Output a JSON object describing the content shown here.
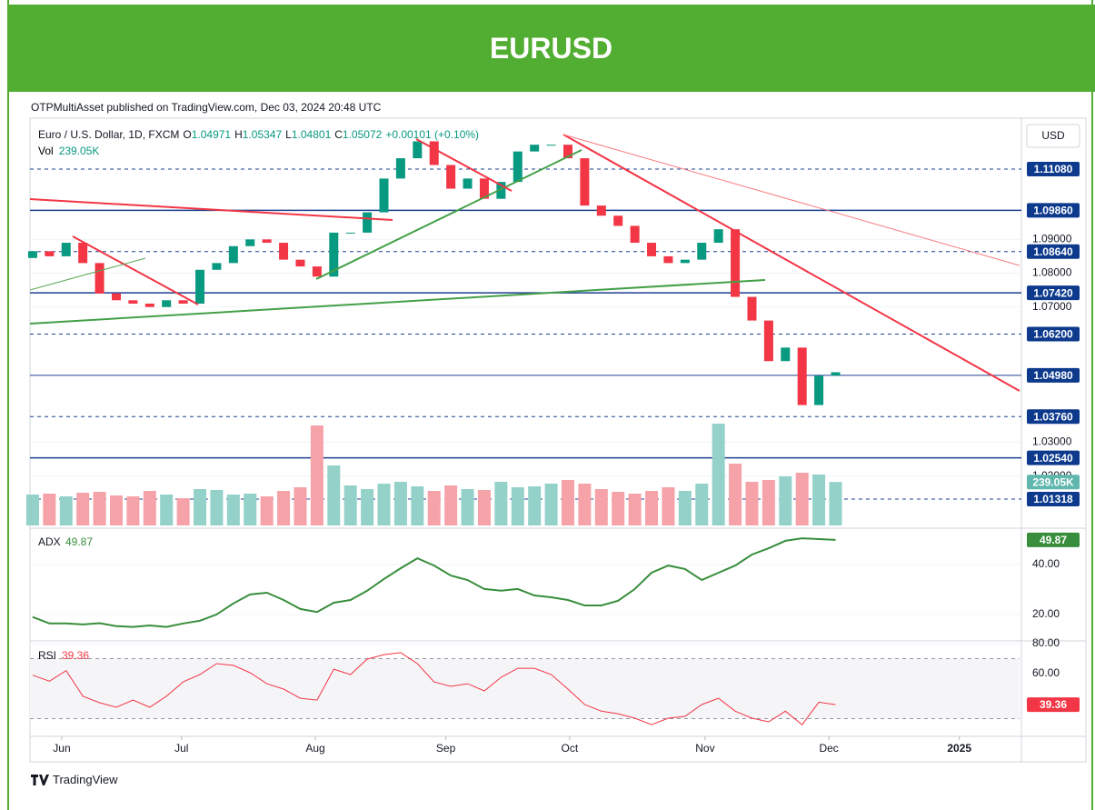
{
  "header": {
    "title": "EURUSD",
    "published": "OTPMultiAsset published on TradingView.com, Dec 03, 2024 20:48 UTC"
  },
  "legend": {
    "symbol": "Euro / U.S. Dollar, 1D, FXCM",
    "open_label": "O",
    "open": "1.04971",
    "high_label": "H",
    "high": "1.05347",
    "low_label": "L",
    "low": "1.04801",
    "close_label": "C",
    "close": "1.05072",
    "change": "+0.00101 (+0.10%)",
    "vol_label": "Vol",
    "vol": "239.05K"
  },
  "chart_data": {
    "type": "candlestick",
    "currency": "USD",
    "xlim": [
      -0.16,
      59.0
    ],
    "xticks": [
      {
        "value": 1.74,
        "label": "Jun"
      },
      {
        "value": 8.9,
        "label": "Jul"
      },
      {
        "value": 16.9,
        "label": "Aug"
      },
      {
        "value": 24.7,
        "label": "Sep"
      },
      {
        "value": 32.1,
        "label": "Oct"
      },
      {
        "value": 40.2,
        "label": "Nov"
      },
      {
        "value": 47.6,
        "label": "Dec"
      },
      {
        "value": 55.4,
        "label": "2025"
      }
    ],
    "ylim": [
      1.0054,
      1.1245
    ],
    "yticks": [
      {
        "value": 1.09,
        "label": "1.09000"
      },
      {
        "value": 1.08,
        "label": "1.08000"
      },
      {
        "value": 1.07,
        "label": "1.07000"
      },
      {
        "value": 1.03,
        "label": "1.03000"
      },
      {
        "value": 1.02,
        "label": "1.02000"
      }
    ],
    "levels": [
      {
        "value": 1.1108,
        "label": "1.11080",
        "style": "dashed"
      },
      {
        "value": 1.0986,
        "label": "1.09860",
        "style": "solid"
      },
      {
        "value": 1.0864,
        "label": "1.08640",
        "style": "dashed"
      },
      {
        "value": 1.0742,
        "label": "1.07420",
        "style": "solid"
      },
      {
        "value": 1.062,
        "label": "1.06200",
        "style": "dashed"
      },
      {
        "value": 1.0498,
        "label": "1.04980",
        "style": "thin"
      },
      {
        "value": 1.0376,
        "label": "1.03760",
        "style": "dashed"
      },
      {
        "value": 1.0254,
        "label": "1.02540",
        "style": "solid"
      },
      {
        "value": 1.01318,
        "label": "1.01318",
        "style": "dashed"
      }
    ],
    "up_color": "#089981",
    "down_color": "#f23645",
    "open": [
      1.0845,
      1.0865,
      1.085,
      1.089,
      1.083,
      1.074,
      1.072,
      1.071,
      1.07,
      1.072,
      1.071,
      1.081,
      1.083,
      1.088,
      1.09,
      1.089,
      1.084,
      1.082,
      1.079,
      1.092,
      1.092,
      1.098,
      1.108,
      1.114,
      1.119,
      1.112,
      1.105,
      1.108,
      1.102,
      1.107,
      1.116,
      1.118,
      1.118,
      1.114,
      1.1,
      1.097,
      1.094,
      1.089,
      1.085,
      1.083,
      1.084,
      1.089,
      1.093,
      1.073,
      1.066,
      1.054,
      1.058,
      1.041,
      1.04971
    ],
    "close": [
      1.0865,
      1.085,
      1.089,
      1.083,
      1.074,
      1.072,
      1.071,
      1.07,
      1.072,
      1.071,
      1.081,
      1.083,
      1.088,
      1.09,
      1.089,
      1.084,
      1.082,
      1.079,
      1.092,
      1.092,
      1.098,
      1.108,
      1.114,
      1.119,
      1.112,
      1.105,
      1.108,
      1.102,
      1.107,
      1.116,
      1.118,
      1.118,
      1.114,
      1.1,
      1.097,
      1.094,
      1.089,
      1.085,
      1.083,
      1.084,
      1.089,
      1.093,
      1.073,
      1.066,
      1.054,
      1.058,
      1.041,
      1.0497,
      1.05072
    ],
    "volume": {
      "ylim": [
        0,
        600
      ],
      "badge": "239.05K",
      "up_color": "#93d1c9",
      "down_color": "#f5a3a9",
      "values": [
        170,
        175,
        160,
        180,
        185,
        165,
        160,
        190,
        170,
        150,
        200,
        195,
        170,
        175,
        160,
        190,
        210,
        550,
        330,
        220,
        200,
        230,
        240,
        215,
        190,
        220,
        200,
        195,
        240,
        210,
        215,
        230,
        250,
        230,
        200,
        185,
        175,
        190,
        210,
        190,
        230,
        560,
        340,
        240,
        250,
        270,
        290,
        280,
        239.05
      ]
    },
    "adx": {
      "label": "ADX",
      "last": "49.87",
      "color": "#388e3c",
      "ylim": [
        10.5,
        53.1
      ],
      "yticks": [
        {
          "value": 40,
          "label": "40.00"
        },
        {
          "value": 20,
          "label": "20.00"
        }
      ],
      "values": [
        19,
        16.4,
        16.4,
        16,
        16.5,
        15.3,
        15,
        15.6,
        15,
        16.4,
        17.5,
        20,
        24.4,
        28,
        28.7,
        25.8,
        22.2,
        21,
        24.7,
        25.8,
        29.5,
        34.2,
        38.5,
        42.5,
        39.6,
        35.6,
        33.8,
        30.2,
        29.5,
        30.2,
        27.6,
        26.9,
        25.8,
        23.6,
        23.6,
        25.5,
        30.2,
        36.7,
        39.6,
        38.2,
        33.8,
        36.7,
        39.6,
        44,
        46.5,
        49.5,
        50.5,
        50.2,
        49.87
      ]
    },
    "rsi": {
      "label": "RSI",
      "last": "39.36",
      "color": "#f23645",
      "ylim": [
        19.4,
        78.8
      ],
      "bands": [
        70,
        30
      ],
      "yticks": [
        {
          "value": 80,
          "label": "80.00"
        },
        {
          "value": 60,
          "label": "60.00"
        }
      ],
      "values": [
        59,
        55,
        62,
        45,
        40.6,
        37.6,
        42.4,
        37.6,
        45,
        54.5,
        59.4,
        66.7,
        65.5,
        60.6,
        53.3,
        49.7,
        43.6,
        42.4,
        63,
        59.4,
        69.7,
        72.7,
        74,
        66.7,
        54.5,
        51.5,
        53.3,
        48.5,
        57.6,
        63.6,
        63.6,
        59.4,
        49.7,
        39.4,
        35,
        33.3,
        30.3,
        26,
        30.3,
        31.5,
        39.4,
        43.6,
        35,
        30.3,
        27.9,
        35,
        26,
        41,
        39.36
      ]
    }
  },
  "footer": {
    "brand": "TradingView"
  }
}
